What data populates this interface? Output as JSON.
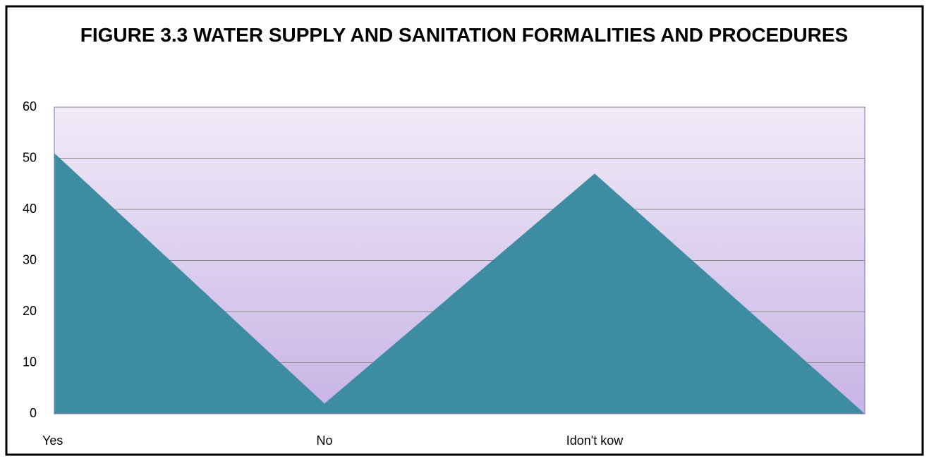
{
  "chart_data": {
    "type": "area",
    "title": "FIGURE 3.3 WATER SUPPLY AND SANITATION FORMALITIES AND PROCEDURES",
    "categories": [
      "Yes",
      "No",
      "Idon't kow",
      null
    ],
    "values": [
      51,
      2,
      47,
      0
    ],
    "color": "#3d8ca2",
    "ylim": [
      0,
      60
    ],
    "yticks": [
      0,
      10,
      20,
      30,
      40,
      50,
      60
    ],
    "grid": true
  }
}
